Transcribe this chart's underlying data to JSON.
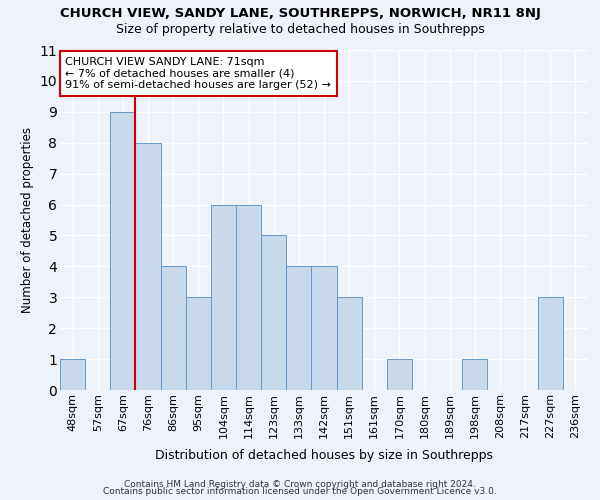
{
  "title": "CHURCH VIEW, SANDY LANE, SOUTHREPPS, NORWICH, NR11 8NJ",
  "subtitle": "Size of property relative to detached houses in Southrepps",
  "xlabel": "Distribution of detached houses by size in Southrepps",
  "ylabel": "Number of detached properties",
  "categories": [
    "48sqm",
    "57sqm",
    "67sqm",
    "76sqm",
    "86sqm",
    "95sqm",
    "104sqm",
    "114sqm",
    "123sqm",
    "133sqm",
    "142sqm",
    "151sqm",
    "161sqm",
    "170sqm",
    "180sqm",
    "189sqm",
    "198sqm",
    "208sqm",
    "217sqm",
    "227sqm",
    "236sqm"
  ],
  "values": [
    1,
    0,
    9,
    8,
    4,
    3,
    6,
    6,
    5,
    4,
    4,
    3,
    0,
    1,
    0,
    0,
    1,
    0,
    0,
    3,
    0
  ],
  "bar_color": "#c9d9ec",
  "bar_edge_color": "#6699cc",
  "red_line_index": 2,
  "red_line_color": "#cc0000",
  "ylim": [
    0,
    11
  ],
  "yticks": [
    0,
    1,
    2,
    3,
    4,
    5,
    6,
    7,
    8,
    9,
    10,
    11
  ],
  "annotation_text": "CHURCH VIEW SANDY LANE: 71sqm\n← 7% of detached houses are smaller (4)\n91% of semi-detached houses are larger (52) →",
  "annotation_box_color": "#ffffff",
  "annotation_box_edge": "#cc0000",
  "footer1": "Contains HM Land Registry data © Crown copyright and database right 2024.",
  "footer2": "Contains public sector information licensed under the Open Government Licence v3.0.",
  "background_color": "#eef2fa",
  "grid_color": "#ffffff"
}
